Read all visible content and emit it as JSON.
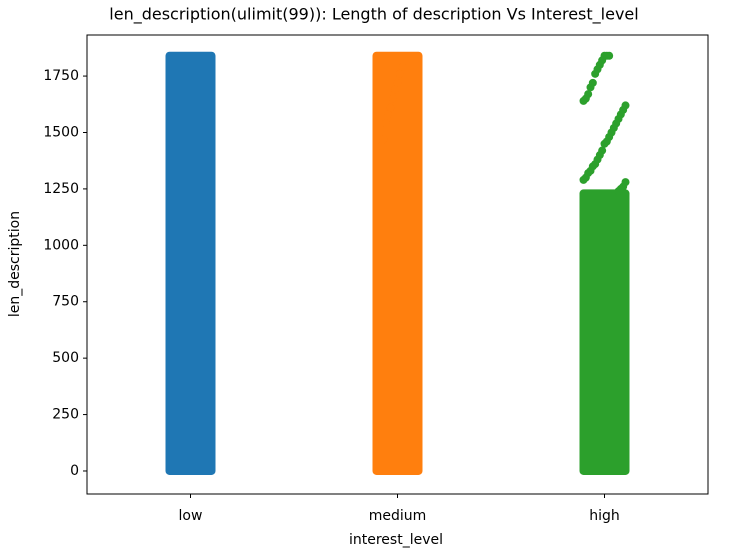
{
  "chart_data": {
    "type": "strip",
    "title": "len_description(ulimit(99)): Length of description Vs Interest_level",
    "x_label": "interest_level",
    "y_label": "len_description",
    "categories": [
      "low",
      "medium",
      "high"
    ],
    "series": [
      {
        "name": "low",
        "color": "#1f77b4",
        "range": [
          0,
          1840
        ],
        "values": []
      },
      {
        "name": "medium",
        "color": "#ff7f0e",
        "range": [
          0,
          1840
        ],
        "values": [
          1790,
          1760,
          1720,
          1690,
          1650,
          1610,
          1580,
          1540,
          1470,
          1440
        ]
      },
      {
        "name": "high",
        "color": "#2ca02c",
        "range": [
          0,
          1230
        ],
        "values": [
          1840,
          1840,
          1840,
          1820,
          1800,
          1780,
          1760,
          1720,
          1700,
          1670,
          1650,
          1640,
          1620,
          1600,
          1580,
          1560,
          1540,
          1520,
          1500,
          1480,
          1460,
          1450,
          1420,
          1400,
          1380,
          1360,
          1350,
          1330,
          1320,
          1300,
          1290,
          1280,
          1260,
          1250,
          1240
        ]
      }
    ],
    "ylim": [
      -102,
      1932
    ],
    "yticks": [
      0,
      250,
      500,
      750,
      1000,
      1250,
      1500,
      1750
    ]
  }
}
